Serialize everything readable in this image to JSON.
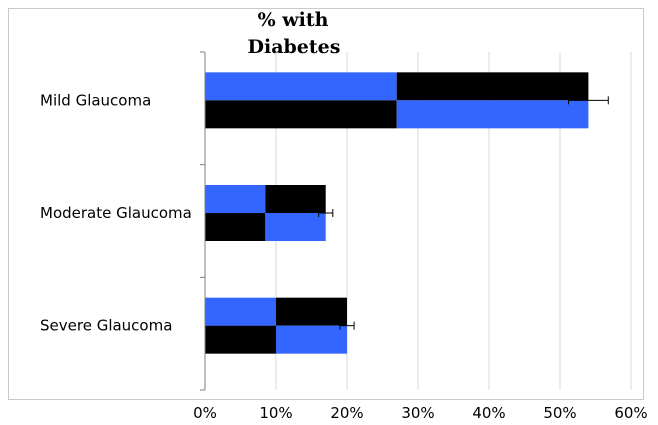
{
  "chart_data": {
    "type": "bar",
    "orientation": "horizontal",
    "title_lines": [
      "% with",
      "Diabetes"
    ],
    "categories": [
      "Mild Glaucoma",
      "Moderate Glaucoma",
      "Severe Glaucoma"
    ],
    "values": [
      54,
      17,
      20
    ],
    "error": [
      2.8,
      1.0,
      1.0
    ],
    "xlim": [
      0,
      60
    ],
    "xticks": [
      0,
      10,
      20,
      30,
      40,
      50,
      60
    ],
    "xtick_labels": [
      "0%",
      "10%",
      "20%",
      "30%",
      "40%",
      "50%",
      "60%"
    ],
    "grid": "vertical",
    "legend": "none",
    "colors": {
      "primary": "#3366ff",
      "secondary": "#000000",
      "grid": "#d9d9d9",
      "axis": "#7f7f7f"
    }
  }
}
